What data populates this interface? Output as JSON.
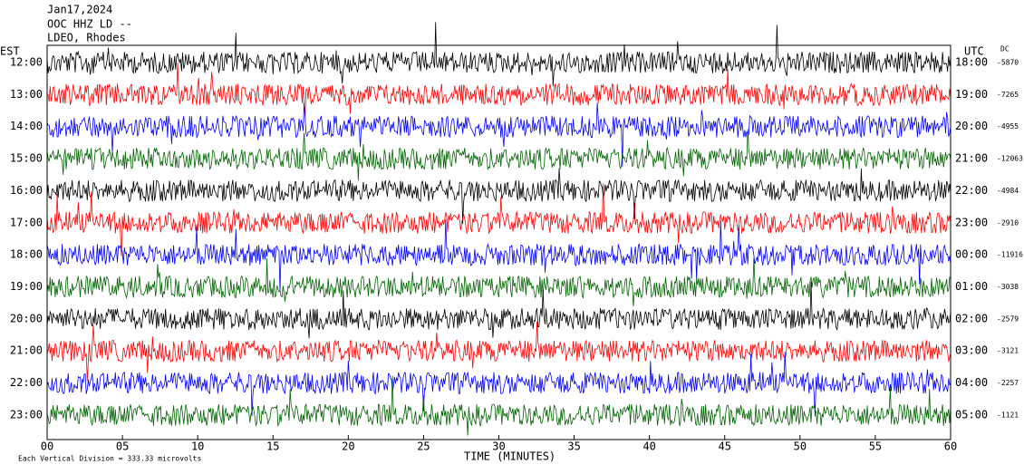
{
  "header": {
    "date": "Jan17,2024",
    "station": "OOC HHZ LD --",
    "network": "LDEO, Rhodes"
  },
  "left_axis_label": "EST",
  "right_axis_label": "UTC",
  "dc_label": "DC",
  "rows": [
    {
      "est": "12:00",
      "utc": "18:00",
      "dc": "-5870",
      "color": "#000000"
    },
    {
      "est": "13:00",
      "utc": "19:00",
      "dc": "-7265",
      "color": "#ff0000"
    },
    {
      "est": "14:00",
      "utc": "20:00",
      "dc": "-4955",
      "color": "#0000ff"
    },
    {
      "est": "15:00",
      "utc": "21:00",
      "dc": "-12063",
      "color": "#006400"
    },
    {
      "est": "16:00",
      "utc": "22:00",
      "dc": "-4984",
      "color": "#000000"
    },
    {
      "est": "17:00",
      "utc": "23:00",
      "dc": "-2910",
      "color": "#ff0000"
    },
    {
      "est": "18:00",
      "utc": "00:00",
      "dc": "-11916",
      "color": "#0000ff"
    },
    {
      "est": "19:00",
      "utc": "01:00",
      "dc": "-3038",
      "color": "#006400"
    },
    {
      "est": "20:00",
      "utc": "02:00",
      "dc": "-2579",
      "color": "#000000"
    },
    {
      "est": "21:00",
      "utc": "03:00",
      "dc": "-3121",
      "color": "#ff0000"
    },
    {
      "est": "22:00",
      "utc": "04:00",
      "dc": "-2257",
      "color": "#0000ff"
    },
    {
      "est": "23:00",
      "utc": "05:00",
      "dc": "-1121",
      "color": "#006400"
    }
  ],
  "x_axis": {
    "label": "TIME (MINUTES)",
    "xlim": [
      0,
      60
    ],
    "xticks": [
      {
        "value": 0,
        "label": "00"
      },
      {
        "value": 5,
        "label": "05"
      },
      10,
      15,
      20,
      25,
      30,
      35,
      40,
      45,
      50,
      55,
      60
    ]
  },
  "footer": "Each Vertical Division = 333.33 microvolts"
}
